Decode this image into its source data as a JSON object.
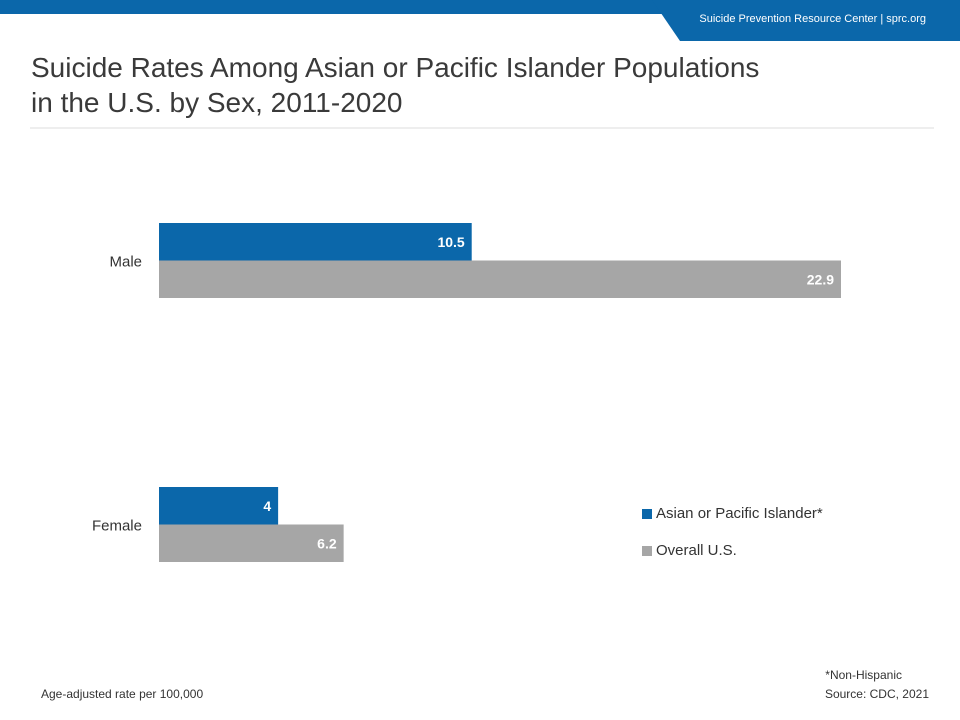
{
  "header": {
    "org_text": "Suicide Prevention Resource Center  |  sprc.org",
    "bar_color": "#0b67aa"
  },
  "title_line1": "Suicide Rates Among Asian or Pacific Islander Populations",
  "title_line2": "in the U.S. by Sex, 2011-2020",
  "chart_data": {
    "type": "bar",
    "orientation": "horizontal",
    "title": "Suicide Rates Among Asian or Pacific Islander Populations in the U.S. by Sex, 2011-2020",
    "categories": [
      "Male",
      "Female"
    ],
    "series": [
      {
        "name": "Asian or Pacific Islander*",
        "values": [
          10.5,
          4
        ],
        "labels": [
          "10.5",
          "4"
        ],
        "color": "#0b67aa"
      },
      {
        "name": "Overall U.S.",
        "values": [
          22.9,
          6.2
        ],
        "labels": [
          "22.9",
          "6.2"
        ],
        "color": "#a6a6a6"
      }
    ],
    "xlim": [
      0,
      22.9
    ],
    "grid": false,
    "axis_ticks": false,
    "legend_position": "right"
  },
  "footer": {
    "units": "Age-adjusted rate per 100,000",
    "footnote": "*Non-Hispanic",
    "source": "Source: CDC, 2021"
  }
}
